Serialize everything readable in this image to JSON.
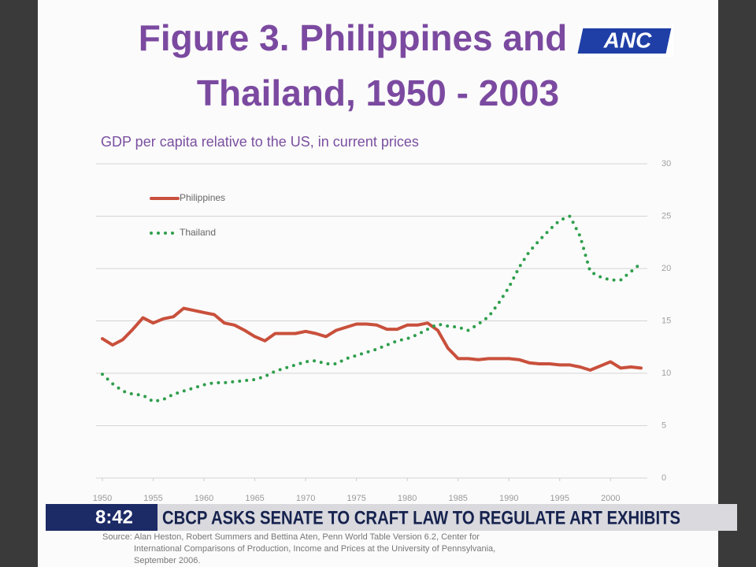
{
  "chart_data": {
    "type": "line",
    "title_lines": [
      "Figure 3. Philippines and",
      "Thailand, 1950 - 2003"
    ],
    "subtitle": "GDP per capita relative to the US, in current prices",
    "x": [
      1950,
      1951,
      1952,
      1953,
      1954,
      1955,
      1956,
      1957,
      1958,
      1959,
      1960,
      1961,
      1962,
      1963,
      1964,
      1965,
      1966,
      1967,
      1968,
      1969,
      1970,
      1971,
      1972,
      1973,
      1974,
      1975,
      1976,
      1977,
      1978,
      1979,
      1980,
      1981,
      1982,
      1983,
      1984,
      1985,
      1986,
      1987,
      1988,
      1989,
      1990,
      1991,
      1992,
      1993,
      1994,
      1995,
      1996,
      1997,
      1998,
      1999,
      2000,
      2001,
      2002,
      2003
    ],
    "series": [
      {
        "name": "Philippines",
        "color": "#c9503c",
        "style": "solid",
        "values": [
          13.3,
          12.7,
          13.2,
          14.2,
          15.3,
          14.8,
          15.2,
          15.4,
          16.2,
          16.0,
          15.8,
          15.6,
          14.8,
          14.6,
          14.1,
          13.5,
          13.1,
          13.8,
          13.8,
          13.8,
          14.0,
          13.8,
          13.5,
          14.1,
          14.4,
          14.7,
          14.7,
          14.6,
          14.2,
          14.2,
          14.6,
          14.6,
          14.8,
          14.1,
          12.4,
          11.4,
          11.4,
          11.3,
          11.4,
          11.4,
          11.4,
          11.3,
          11.0,
          10.9,
          10.9,
          10.8,
          10.8,
          10.6,
          10.3,
          10.7,
          11.1,
          10.5,
          10.6,
          10.5
        ]
      },
      {
        "name": "Thailand",
        "color": "#2f9e4c",
        "style": "dotted",
        "values": [
          9.9,
          9.0,
          8.3,
          8.0,
          7.9,
          7.3,
          7.5,
          8.0,
          8.3,
          8.6,
          8.9,
          9.1,
          9.1,
          9.2,
          9.3,
          9.4,
          9.7,
          10.2,
          10.5,
          10.8,
          11.1,
          11.2,
          10.9,
          10.9,
          11.4,
          11.7,
          12.0,
          12.3,
          12.7,
          13.1,
          13.3,
          13.7,
          14.2,
          14.7,
          14.5,
          14.4,
          14.1,
          14.7,
          15.4,
          16.7,
          18.2,
          20.1,
          21.6,
          22.7,
          23.7,
          24.6,
          25.0,
          23.1,
          19.7,
          19.2,
          18.9,
          18.9,
          19.7,
          20.5
        ]
      }
    ],
    "xlim": [
      1950,
      2003
    ],
    "xticks": [
      1950,
      1955,
      1960,
      1965,
      1970,
      1975,
      1980,
      1985,
      1990,
      1995,
      2000
    ],
    "ylim": [
      0,
      30
    ],
    "yticks": [
      0,
      5,
      10,
      15,
      20,
      25,
      30
    ],
    "y_axis_side": "right",
    "grid": true,
    "legend": "upper left",
    "source_lines": [
      "Source: Alan Heston, Robert Summers and Bettina Aten, Penn World Table Version 6.2, Center for",
      "International Comparisons of Production, Income and Prices at the University of Pennsylvania,",
      "September 2006."
    ]
  },
  "overlay": {
    "logo": "ANC",
    "time": "8:42",
    "headline": "CBCP ASKS SENATE TO CRAFT LAW TO REGULATE ART EXHIBITS"
  }
}
